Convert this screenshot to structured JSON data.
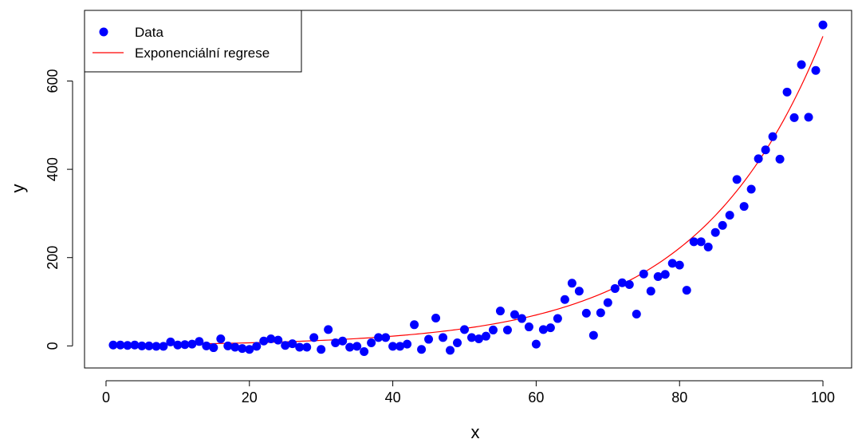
{
  "chart_data": {
    "type": "scatter",
    "title": "",
    "xlabel": "x",
    "ylabel": "y",
    "xlim": [
      -3,
      104
    ],
    "ylim": [
      -50,
      760
    ],
    "xticks": [
      0,
      20,
      40,
      60,
      80,
      100
    ],
    "yticks": [
      0,
      200,
      400,
      600
    ],
    "x_tick_labels": [
      "0",
      "20",
      "40",
      "60",
      "80",
      "100"
    ],
    "y_tick_labels": [
      "0",
      "200",
      "400",
      "600"
    ],
    "grid": false,
    "legend_position": "top-left",
    "legend": [
      {
        "label": "Data",
        "kind": "point",
        "color": "#0000ff"
      },
      {
        "label": "Exponenciální regrese",
        "kind": "line",
        "color": "#ff0000"
      }
    ],
    "series": [
      {
        "name": "Data",
        "kind": "scatter",
        "color": "#0000ff",
        "x": [
          1,
          2,
          3,
          4,
          5,
          6,
          7,
          8,
          9,
          10,
          11,
          12,
          13,
          14,
          15,
          16,
          17,
          18,
          19,
          20,
          21,
          22,
          23,
          24,
          25,
          26,
          27,
          28,
          29,
          30,
          31,
          32,
          33,
          34,
          35,
          36,
          37,
          38,
          39,
          40,
          41,
          42,
          43,
          44,
          45,
          46,
          47,
          48,
          49,
          50,
          51,
          52,
          53,
          54,
          55,
          56,
          57,
          58,
          59,
          60,
          61,
          62,
          63,
          64,
          65,
          66,
          67,
          68,
          69,
          70,
          71,
          72,
          73,
          74,
          75,
          76,
          77,
          78,
          79,
          80,
          81,
          82,
          83,
          84,
          85,
          86,
          87,
          88,
          89,
          90,
          91,
          92,
          93,
          94,
          95,
          96,
          97,
          98,
          99,
          100
        ],
        "y": [
          2,
          2,
          1,
          2,
          0,
          0,
          -1,
          -1,
          9,
          2,
          3,
          4,
          10,
          0,
          -4,
          16,
          0,
          -3,
          -6,
          -8,
          -1,
          11,
          16,
          13,
          1,
          5,
          -3,
          -3,
          19,
          -8,
          37,
          7,
          11,
          -3,
          -1,
          -13,
          7,
          19,
          19,
          -1,
          -1,
          4,
          48,
          -8,
          15,
          63,
          19,
          -10,
          7,
          37,
          19,
          16,
          22,
          36,
          79,
          36,
          71,
          62,
          43,
          4,
          37,
          41,
          62,
          105,
          142,
          124,
          74,
          24,
          75,
          98,
          130,
          143,
          139,
          72,
          163,
          124,
          157,
          162,
          187,
          183,
          126,
          236,
          236,
          224,
          257,
          273,
          296,
          377,
          316,
          355,
          424,
          444,
          474,
          423,
          575,
          517,
          637,
          518,
          624,
          727
        ]
      },
      {
        "name": "Exponenciální regrese",
        "kind": "line",
        "color": "#ff0000",
        "model": "y = a * exp(b * x)",
        "a": 2.21,
        "b": 0.0576
      }
    ]
  }
}
